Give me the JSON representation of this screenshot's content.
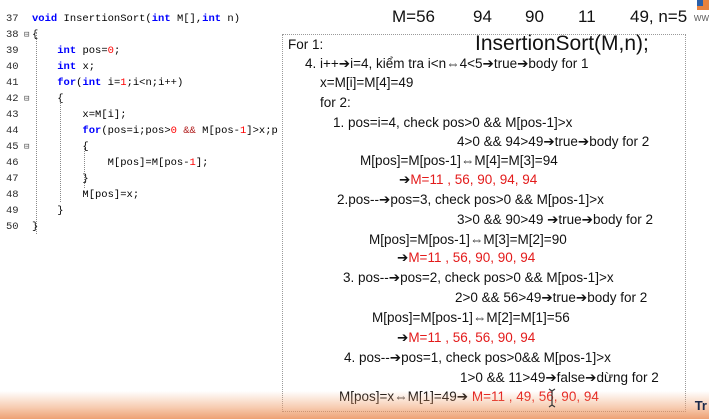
{
  "code": {
    "lines": [
      {
        "num": "37",
        "fold": "",
        "tokens": [
          [
            "kw",
            "void "
          ],
          [
            "",
            "InsertionSort("
          ],
          [
            "kw",
            "int "
          ],
          [
            "",
            "M[],"
          ],
          [
            "kw",
            "int "
          ],
          [
            "",
            "n)"
          ]
        ]
      },
      {
        "num": "38",
        "fold": "⊟",
        "tokens": [
          [
            "",
            "{"
          ]
        ]
      },
      {
        "num": "39",
        "fold": "",
        "tokens": [
          [
            "",
            "    "
          ],
          [
            "kw",
            "int "
          ],
          [
            "",
            "pos="
          ],
          [
            "num",
            "0"
          ],
          [
            "",
            ";"
          ]
        ]
      },
      {
        "num": "40",
        "fold": "",
        "tokens": [
          [
            "",
            "    "
          ],
          [
            "kw",
            "int "
          ],
          [
            "",
            "x;"
          ]
        ]
      },
      {
        "num": "41",
        "fold": "",
        "tokens": [
          [
            "",
            "    "
          ],
          [
            "kw",
            "for"
          ],
          [
            "",
            "("
          ],
          [
            "kw",
            "int "
          ],
          [
            "",
            "i="
          ],
          [
            "num",
            "1"
          ],
          [
            "",
            ";i<n;i++)"
          ]
        ]
      },
      {
        "num": "42",
        "fold": "⊟",
        "tokens": [
          [
            "",
            "    {"
          ]
        ]
      },
      {
        "num": "43",
        "fold": "",
        "tokens": [
          [
            "",
            "        x=M[i];"
          ]
        ]
      },
      {
        "num": "44",
        "fold": "",
        "tokens": [
          [
            "",
            "        "
          ],
          [
            "kw",
            "for"
          ],
          [
            "",
            "(pos=i;pos>"
          ],
          [
            "num",
            "0"
          ],
          [
            "op",
            " && "
          ],
          [
            "",
            "M[pos-"
          ],
          [
            "num",
            "1"
          ],
          [
            "",
            "]>x;pos--)"
          ]
        ]
      },
      {
        "num": "45",
        "fold": "⊟",
        "tokens": [
          [
            "",
            "        {"
          ]
        ]
      },
      {
        "num": "46",
        "fold": "",
        "tokens": [
          [
            "",
            "            M[pos]=M[pos-"
          ],
          [
            "num",
            "1"
          ],
          [
            "",
            "];"
          ]
        ]
      },
      {
        "num": "47",
        "fold": "",
        "tokens": [
          [
            "",
            "        }"
          ]
        ]
      },
      {
        "num": "48",
        "fold": "",
        "tokens": [
          [
            "",
            "        M[pos]=x;"
          ]
        ]
      },
      {
        "num": "49",
        "fold": "",
        "tokens": [
          [
            "",
            "    }"
          ]
        ]
      },
      {
        "num": "50",
        "fold": "",
        "tokens": [
          [
            "",
            "}"
          ]
        ]
      }
    ]
  },
  "slide": {
    "array_header": {
      "label": "M=56",
      "v1": "94",
      "v2": "90",
      "v3": "11",
      "v4": "49, n=5"
    },
    "title": "InsertionSort(M,n);",
    "logo_text": "WW",
    "footer_text": "Tr",
    "lines": [
      {
        "text": "For 1:",
        "red": ""
      },
      {
        "text": "4. i++➔i=4, kiểm tra i<n⇔4<5➔true➔body for 1",
        "red": ""
      },
      {
        "text": "x=M[i]=M[4]=49",
        "red": ""
      },
      {
        "text": "for 2:",
        "red": ""
      },
      {
        "text": "1. pos=i=4, check pos>0 && M[pos-1]>x",
        "red": ""
      },
      {
        "text": "4>0 && 94>49➔true➔body for 2",
        "red": ""
      },
      {
        "text": "M[pos]=M[pos-1]⇔M[4]=M[3]=94",
        "red": ""
      },
      {
        "text": "➔",
        "red": "M=11 , 56, 90, 94, 94"
      },
      {
        "text": "2.pos--➔pos=3, check pos>0 && M[pos-1]>x",
        "red": ""
      },
      {
        "text": "3>0 && 90>49  ➔true➔body for 2",
        "red": ""
      },
      {
        "text": "M[pos]=M[pos-1]⇔M[3]=M[2]=90",
        "red": ""
      },
      {
        "text": "➔",
        "red": "M=11 , 56, 90, 90, 94"
      },
      {
        "text": "3. pos--➔pos=2, check pos>0 && M[pos-1]>x",
        "red": ""
      },
      {
        "text": "2>0 && 56>49➔true➔body for 2",
        "red": ""
      },
      {
        "text": "M[pos]=M[pos-1]⇔M[2]=M[1]=56",
        "red": ""
      },
      {
        "text": "➔",
        "red": "M=11 , 56, 56, 90, 94"
      },
      {
        "text": "4. pos--➔pos=1, check pos>0&& M[pos-1]>x",
        "red": ""
      },
      {
        "text": "1>0 && 11>49➔false➔dừng for 2",
        "red": ""
      },
      {
        "text": "M[pos]=x⇔M[1]=49➔ ",
        "red": "M=11 , 49, 56, 90, 94"
      }
    ]
  },
  "colors": {
    "keyword": "#0000ff",
    "number": "#ff0000",
    "highlight_red": "#e31b1b",
    "footer_orange": "#e8823e"
  }
}
